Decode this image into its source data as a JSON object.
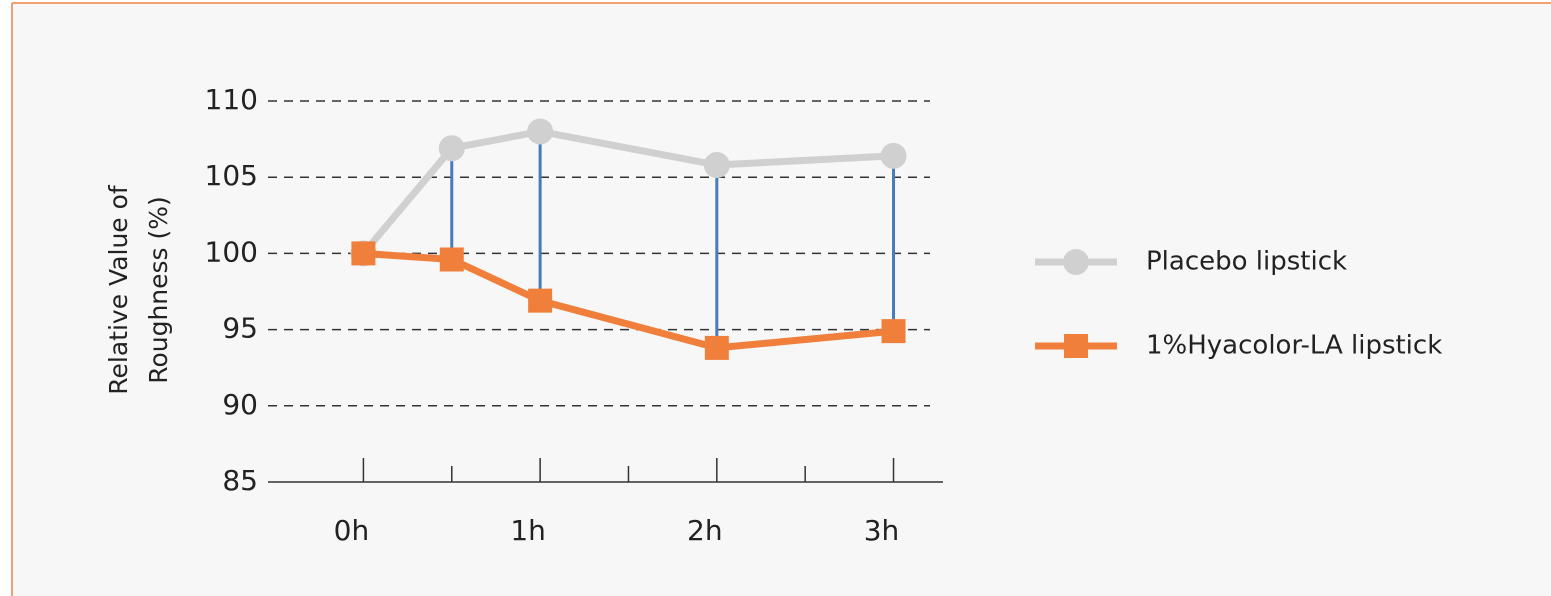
{
  "chart_data": {
    "type": "line",
    "ylabel": [
      "Relative Value of",
      "Roughness (%)"
    ],
    "x": [
      0,
      0.5,
      1,
      2,
      3
    ],
    "series": [
      {
        "name": "Placebo lipstick",
        "color": "#d0d0d0",
        "marker": "circle",
        "values": [
          100,
          106.9,
          108,
          105.8,
          106.4
        ]
      },
      {
        "name": "1%Hyacolor-LA lipstick",
        "color": "#f07f3c",
        "marker": "square",
        "values": [
          100,
          99.6,
          96.9,
          93.8,
          94.9
        ]
      }
    ],
    "connector_color": "#4a7ab8",
    "xlim": [
      -0.54,
      3.28
    ],
    "xticks": [
      {
        "value": 0,
        "label": "0h"
      },
      {
        "value": 1,
        "label": "1h"
      },
      {
        "value": 2,
        "label": "2h"
      },
      {
        "value": 3,
        "label": "3h"
      }
    ],
    "xminor_ticks": [
      0.5,
      1.5,
      2.5
    ],
    "ylim": [
      85,
      110
    ],
    "yticks": [
      85,
      90,
      95,
      100,
      105,
      110
    ],
    "grid": true,
    "legend": "right"
  }
}
